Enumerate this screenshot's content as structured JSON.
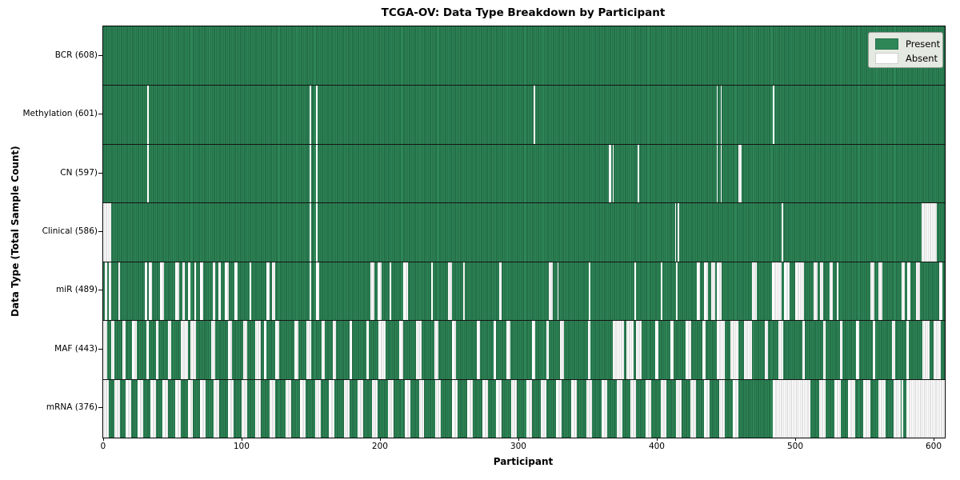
{
  "title": "TCGA-OV: Data Type Breakdown by Participant",
  "x_axis_label": "Participant",
  "y_axis_label": "Data Type (Total Sample Count)",
  "legend": {
    "present_label": "Present",
    "absent_label": "Absent"
  },
  "colors": {
    "present": "#2e8657",
    "present_edge": "#1c5838",
    "absent": "#ffffff",
    "absent_edge": "#c4c4c4",
    "legend_bg": "#e4e9e1"
  },
  "chart_data": {
    "type": "heatmap",
    "title": "TCGA-OV: Data Type Breakdown by Participant",
    "xlabel": "Participant",
    "ylabel": "Data Type (Total Sample Count)",
    "legend_entries": [
      "Present",
      "Absent"
    ],
    "legend_position": "upper right",
    "grid": false,
    "n_participants": 608,
    "x_ticks": [
      0,
      100,
      200,
      300,
      400,
      500,
      600
    ],
    "x_range": [
      -0.5,
      607.5
    ],
    "rows": [
      {
        "name": "BCR",
        "label": "BCR (608)",
        "present_count": 608,
        "absent_count": 0,
        "absent_ranges": []
      },
      {
        "name": "Methylation",
        "label": "Methylation (601)",
        "present_count": 601,
        "absent_count": 7,
        "absent_ranges": [
          [
            32,
            32
          ],
          [
            149,
            149
          ],
          [
            154,
            154
          ],
          [
            311,
            311
          ],
          [
            443,
            443
          ],
          [
            446,
            446
          ],
          [
            484,
            484
          ]
        ]
      },
      {
        "name": "CN",
        "label": "CN (597)",
        "present_count": 597,
        "absent_count": 11,
        "absent_ranges": [
          [
            32,
            32
          ],
          [
            149,
            149
          ],
          [
            154,
            154
          ],
          [
            365,
            366
          ],
          [
            368,
            368
          ],
          [
            386,
            386
          ],
          [
            443,
            443
          ],
          [
            446,
            446
          ],
          [
            459,
            460
          ]
        ]
      },
      {
        "name": "Clinical",
        "label": "Clinical (586)",
        "present_count": 586,
        "absent_count": 22,
        "absent_ranges": [
          [
            0,
            5
          ],
          [
            149,
            149
          ],
          [
            154,
            154
          ],
          [
            413,
            413
          ],
          [
            415,
            415
          ],
          [
            490,
            490
          ],
          [
            591,
            601
          ]
        ]
      },
      {
        "name": "miR",
        "label": "miR (489)",
        "present_count": 489,
        "absent_count": 119,
        "absent_ranges": [
          [
            1,
            2
          ],
          [
            4,
            5
          ],
          [
            11,
            11
          ],
          [
            30,
            31
          ],
          [
            33,
            34
          ],
          [
            41,
            43
          ],
          [
            52,
            54
          ],
          [
            57,
            58
          ],
          [
            61,
            62
          ],
          [
            66,
            66
          ],
          [
            70,
            71
          ],
          [
            79,
            80
          ],
          [
            83,
            84
          ],
          [
            88,
            90
          ],
          [
            95,
            96
          ],
          [
            106,
            106
          ],
          [
            118,
            119
          ],
          [
            122,
            123
          ],
          [
            149,
            149
          ],
          [
            154,
            155
          ],
          [
            193,
            195
          ],
          [
            198,
            200
          ],
          [
            207,
            207
          ],
          [
            217,
            219
          ],
          [
            237,
            237
          ],
          [
            249,
            251
          ],
          [
            260,
            260
          ],
          [
            286,
            287
          ],
          [
            322,
            324
          ],
          [
            328,
            328
          ],
          [
            351,
            351
          ],
          [
            384,
            384
          ],
          [
            403,
            403
          ],
          [
            414,
            414
          ],
          [
            429,
            430
          ],
          [
            434,
            436
          ],
          [
            439,
            441
          ],
          [
            443,
            446
          ],
          [
            469,
            471
          ],
          [
            483,
            489
          ],
          [
            492,
            495
          ],
          [
            500,
            505
          ],
          [
            513,
            515
          ],
          [
            518,
            519
          ],
          [
            525,
            526
          ],
          [
            530,
            530
          ],
          [
            554,
            556
          ],
          [
            560,
            562
          ],
          [
            577,
            578
          ],
          [
            581,
            582
          ],
          [
            587,
            589
          ],
          [
            604,
            605
          ]
        ]
      },
      {
        "name": "MAF",
        "label": "MAF (443)",
        "present_count": 443,
        "absent_count": 165,
        "absent_ranges": [
          [
            0,
            2
          ],
          [
            6,
            7
          ],
          [
            14,
            15
          ],
          [
            21,
            23
          ],
          [
            31,
            32
          ],
          [
            38,
            39
          ],
          [
            47,
            48
          ],
          [
            56,
            60
          ],
          [
            63,
            66
          ],
          [
            78,
            80
          ],
          [
            90,
            92
          ],
          [
            101,
            103
          ],
          [
            110,
            113
          ],
          [
            116,
            117
          ],
          [
            124,
            126
          ],
          [
            138,
            140
          ],
          [
            147,
            149
          ],
          [
            158,
            159
          ],
          [
            166,
            167
          ],
          [
            178,
            179
          ],
          [
            190,
            191
          ],
          [
            199,
            203
          ],
          [
            214,
            216
          ],
          [
            226,
            229
          ],
          [
            239,
            241
          ],
          [
            252,
            254
          ],
          [
            270,
            271
          ],
          [
            282,
            283
          ],
          [
            291,
            293
          ],
          [
            310,
            311
          ],
          [
            320,
            321
          ],
          [
            330,
            332
          ],
          [
            350,
            351
          ],
          [
            368,
            375
          ],
          [
            378,
            382
          ],
          [
            385,
            388
          ],
          [
            399,
            400
          ],
          [
            410,
            411
          ],
          [
            421,
            424
          ],
          [
            433,
            434
          ],
          [
            443,
            448
          ],
          [
            453,
            458
          ],
          [
            463,
            468
          ],
          [
            478,
            479
          ],
          [
            488,
            490
          ],
          [
            505,
            506
          ],
          [
            520,
            521
          ],
          [
            532,
            533
          ],
          [
            544,
            545
          ],
          [
            556,
            557
          ],
          [
            570,
            571
          ],
          [
            580,
            581
          ],
          [
            592,
            596
          ],
          [
            600,
            604
          ]
        ]
      },
      {
        "name": "mRNA",
        "label": "mRNA (376)",
        "present_count": 376,
        "absent_count": 232,
        "absent_ranges": [
          [
            0,
            3
          ],
          [
            8,
            11
          ],
          [
            16,
            19
          ],
          [
            25,
            28
          ],
          [
            34,
            37
          ],
          [
            43,
            46
          ],
          [
            52,
            55
          ],
          [
            61,
            64
          ],
          [
            70,
            73
          ],
          [
            80,
            83
          ],
          [
            90,
            93
          ],
          [
            100,
            103
          ],
          [
            110,
            113
          ],
          [
            120,
            123
          ],
          [
            132,
            135
          ],
          [
            142,
            145
          ],
          [
            153,
            156
          ],
          [
            163,
            166
          ],
          [
            174,
            177
          ],
          [
            184,
            187
          ],
          [
            194,
            197
          ],
          [
            206,
            209
          ],
          [
            218,
            221
          ],
          [
            228,
            231
          ],
          [
            240,
            243
          ],
          [
            252,
            255
          ],
          [
            263,
            266
          ],
          [
            274,
            277
          ],
          [
            284,
            287
          ],
          [
            295,
            298
          ],
          [
            306,
            309
          ],
          [
            316,
            319
          ],
          [
            327,
            330
          ],
          [
            338,
            341
          ],
          [
            349,
            352
          ],
          [
            360,
            363
          ],
          [
            371,
            374
          ],
          [
            381,
            384
          ],
          [
            392,
            395
          ],
          [
            403,
            406
          ],
          [
            414,
            417
          ],
          [
            424,
            427
          ],
          [
            434,
            437
          ],
          [
            445,
            448
          ],
          [
            455,
            458
          ],
          [
            484,
            510
          ],
          [
            517,
            521
          ],
          [
            528,
            532
          ],
          [
            538,
            542
          ],
          [
            549,
            553
          ],
          [
            560,
            564
          ],
          [
            571,
            575
          ],
          [
            577,
            577
          ],
          [
            580,
            607
          ]
        ]
      }
    ]
  }
}
